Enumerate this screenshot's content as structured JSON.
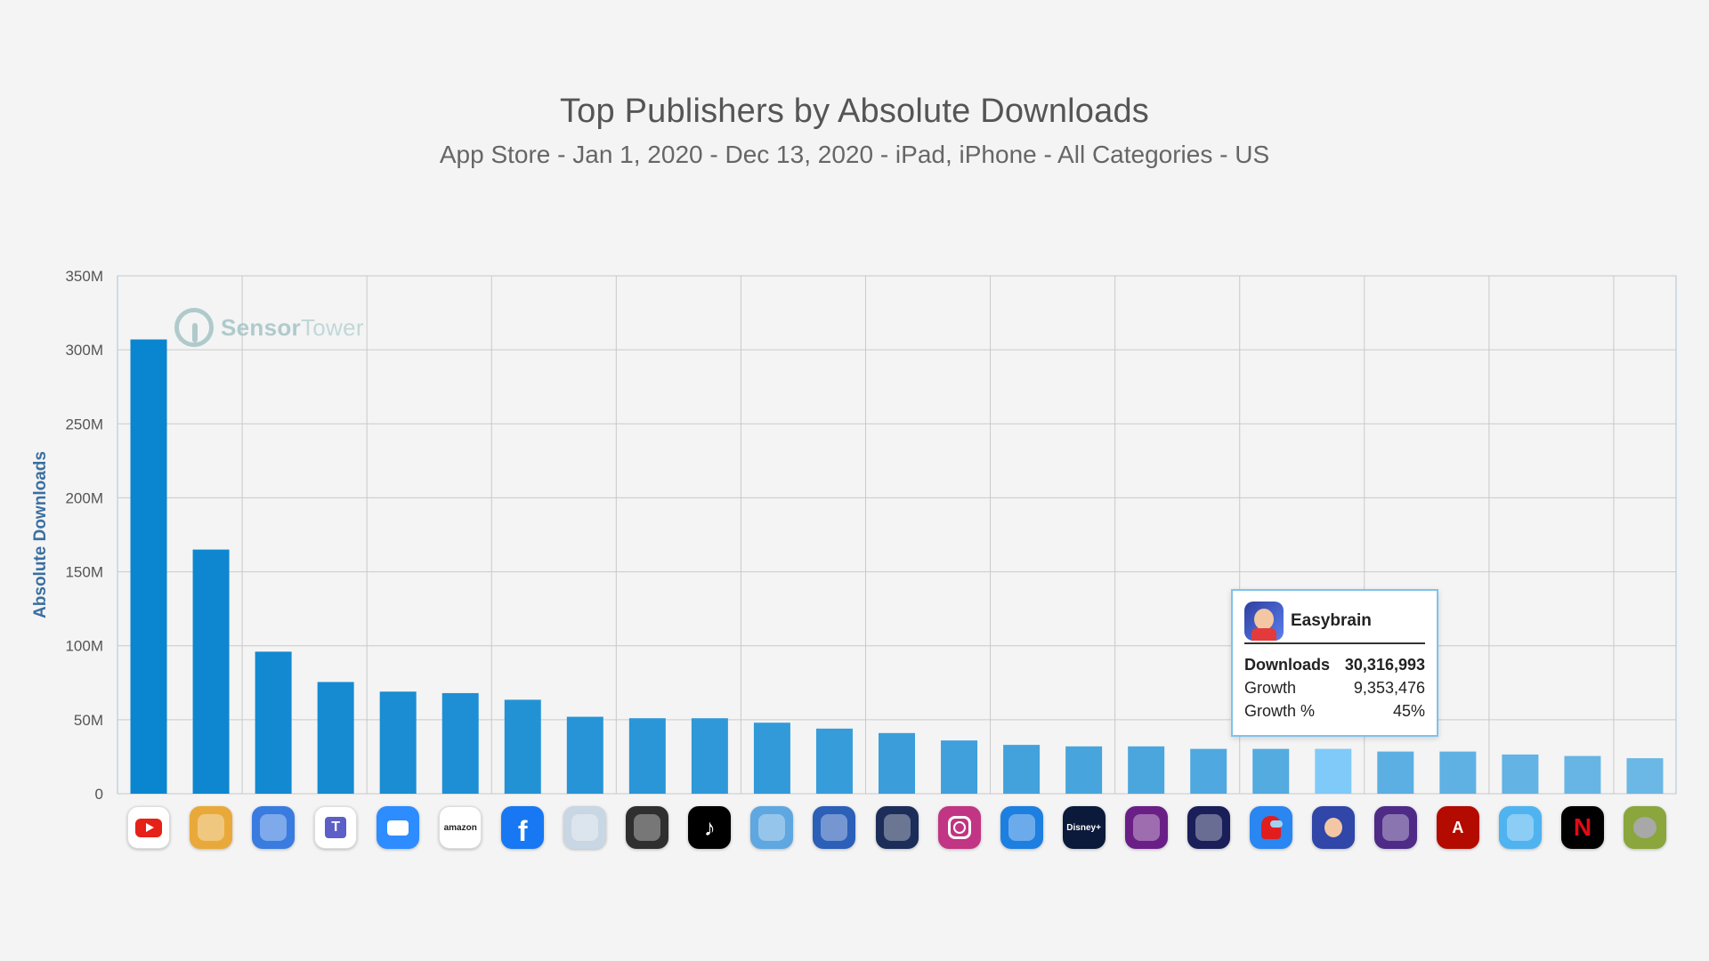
{
  "header": {
    "title": "Top Publishers by Absolute Downloads",
    "subtitle": "App Store - Jan 1, 2020 - Dec 13, 2020 - iPad, iPhone - All Categories - US"
  },
  "watermark": {
    "brand_bold": "Sensor",
    "brand_light": "Tower"
  },
  "chart_data": {
    "type": "bar",
    "title": "Top Publishers by Absolute Downloads",
    "ylabel": "Absolute Downloads",
    "xlabel": "",
    "ylim": [
      0,
      350000000
    ],
    "yticks": [
      0,
      50000000,
      100000000,
      150000000,
      200000000,
      250000000,
      300000000,
      350000000
    ],
    "ytick_labels": [
      "0",
      "50M",
      "100M",
      "150M",
      "200M",
      "250M",
      "300M",
      "350M"
    ],
    "grid": true,
    "highlighted_index": 19,
    "values": [
      307000000,
      165000000,
      96000000,
      75500000,
      69000000,
      68000000,
      63500000,
      52000000,
      51000000,
      51000000,
      48000000,
      44000000,
      41000000,
      36000000,
      33000000,
      32000000,
      32000000,
      30300000,
      30300000,
      30316993,
      28500000,
      28500000,
      26500000,
      25500000,
      24000000
    ],
    "category_icons": [
      "youtube-icon",
      "game-app-icon",
      "game-app-icon",
      "teams-icon",
      "zoom-icon",
      "amazon-icon",
      "facebook-icon",
      "game-app-icon",
      "game-app-icon",
      "tiktok-icon",
      "game-app-icon",
      "game-app-icon",
      "game-app-icon",
      "instagram-icon",
      "game-app-icon",
      "disney-plus-icon",
      "game-app-icon",
      "game-app-icon",
      "among-us-icon",
      "easybrain-icon",
      "game-app-icon",
      "adobe-pdf-icon",
      "game-app-icon",
      "netflix-icon",
      "talking-tom-icon"
    ],
    "icon_colors": [
      "#ffffff",
      "#e9a93a",
      "#3a7be0",
      "#ffffff",
      "#2d8cff",
      "#ffffff",
      "#1877f2",
      "#c9d6e4",
      "#2f2f2f",
      "#000000",
      "#5fa7e0",
      "#2b5fb8",
      "#1c2d5a",
      "#c13584",
      "#1d7fe0",
      "#0b1a3a",
      "#6a1f86",
      "#1a1f5a",
      "#2a86f0",
      "#3046a8",
      "#4d2b86",
      "#b30b00",
      "#4fb3f0",
      "#000000",
      "#8aa63c"
    ],
    "colors": {
      "bar": "#1f8fd6",
      "bar_start": "#0a85cf",
      "bar_end": "#6bb7e6",
      "highlight": "#7fcaf8",
      "grid": "#c9c9c9",
      "axis_frame": "#a9c3d8"
    },
    "tooltip": {
      "name": "Easybrain",
      "downloads_label": "Downloads",
      "downloads_value": "30,316,993",
      "growth_label": "Growth",
      "growth_value": "9,353,476",
      "growth_pct_label": "Growth %",
      "growth_pct_value": "45%"
    }
  }
}
